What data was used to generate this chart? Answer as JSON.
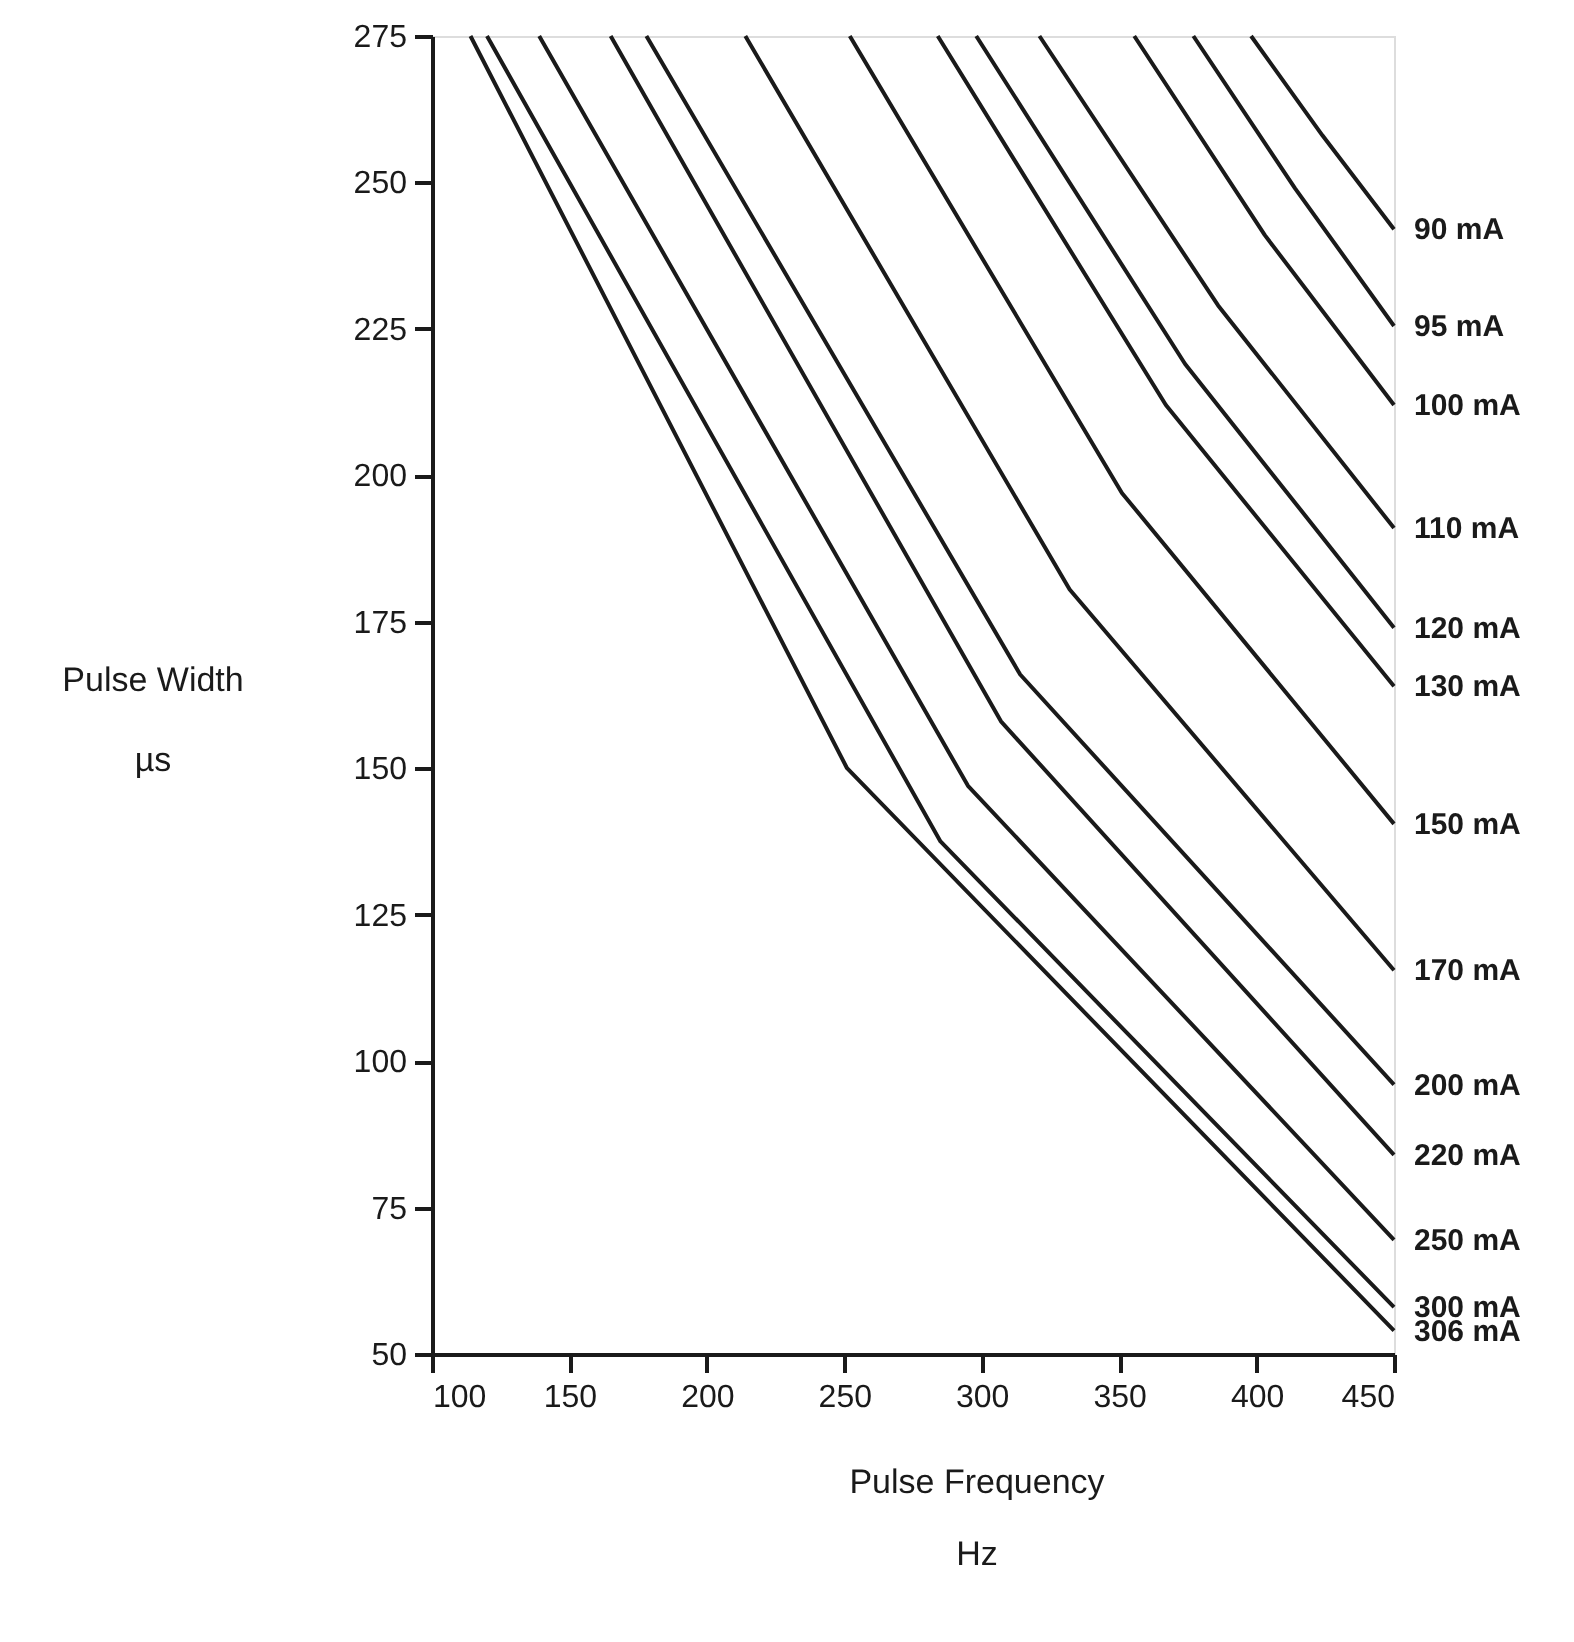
{
  "chart_data": {
    "type": "line",
    "xlabel": "Pulse Frequency\nHz",
    "ylabel": "Pulse Width\nµs",
    "xlim": [
      100,
      450
    ],
    "xticks": [
      100,
      150,
      200,
      250,
      300,
      350,
      400,
      450
    ],
    "ylim": [
      50,
      275
    ],
    "yticks": [
      50,
      75,
      100,
      125,
      150,
      175,
      200,
      225,
      250,
      275
    ],
    "grid": false,
    "series": [
      {
        "name": "90 mA",
        "color": "#1a1a1a",
        "x": [
          398,
          424,
          450
        ],
        "values": [
          275,
          258,
          242
        ]
      },
      {
        "name": "95 mA",
        "color": "#1a1a1a",
        "x": [
          377,
          414,
          450
        ],
        "values": [
          275,
          249,
          225.5
        ]
      },
      {
        "name": "100 mA",
        "color": "#1a1a1a",
        "x": [
          355.5,
          403,
          450
        ],
        "values": [
          275,
          241,
          212
        ]
      },
      {
        "name": "110 mA",
        "color": "#1a1a1a",
        "x": [
          321,
          386,
          450
        ],
        "values": [
          275,
          229,
          191
        ]
      },
      {
        "name": "120 mA",
        "color": "#1a1a1a",
        "x": [
          298,
          374,
          450
        ],
        "values": [
          275,
          219,
          174
        ]
      },
      {
        "name": "130 mA",
        "color": "#1a1a1a",
        "x": [
          284,
          367,
          450
        ],
        "values": [
          275,
          212,
          164
        ]
      },
      {
        "name": "150 mA",
        "color": "#1a1a1a",
        "x": [
          252,
          351,
          450
        ],
        "values": [
          275,
          197,
          140.5
        ]
      },
      {
        "name": "170 mA",
        "color": "#1a1a1a",
        "x": [
          214,
          332,
          450
        ],
        "values": [
          275,
          180.5,
          115.5
        ]
      },
      {
        "name": "200 mA",
        "color": "#1a1a1a",
        "x": [
          178,
          314,
          450
        ],
        "values": [
          275,
          166,
          96
        ]
      },
      {
        "name": "220 mA",
        "color": "#1a1a1a",
        "x": [
          165,
          307,
          450
        ],
        "values": [
          275,
          158,
          84
        ]
      },
      {
        "name": "250 mA",
        "color": "#1a1a1a",
        "x": [
          139,
          295,
          450
        ],
        "values": [
          275,
          147,
          69.5
        ]
      },
      {
        "name": "300 mA",
        "color": "#1a1a1a",
        "x": [
          120,
          285,
          450
        ],
        "values": [
          275,
          137.5,
          58
        ]
      },
      {
        "name": "306 mA",
        "color": "#1a1a1a",
        "x": [
          114,
          251,
          450
        ],
        "values": [
          275,
          150,
          54
        ]
      }
    ]
  }
}
